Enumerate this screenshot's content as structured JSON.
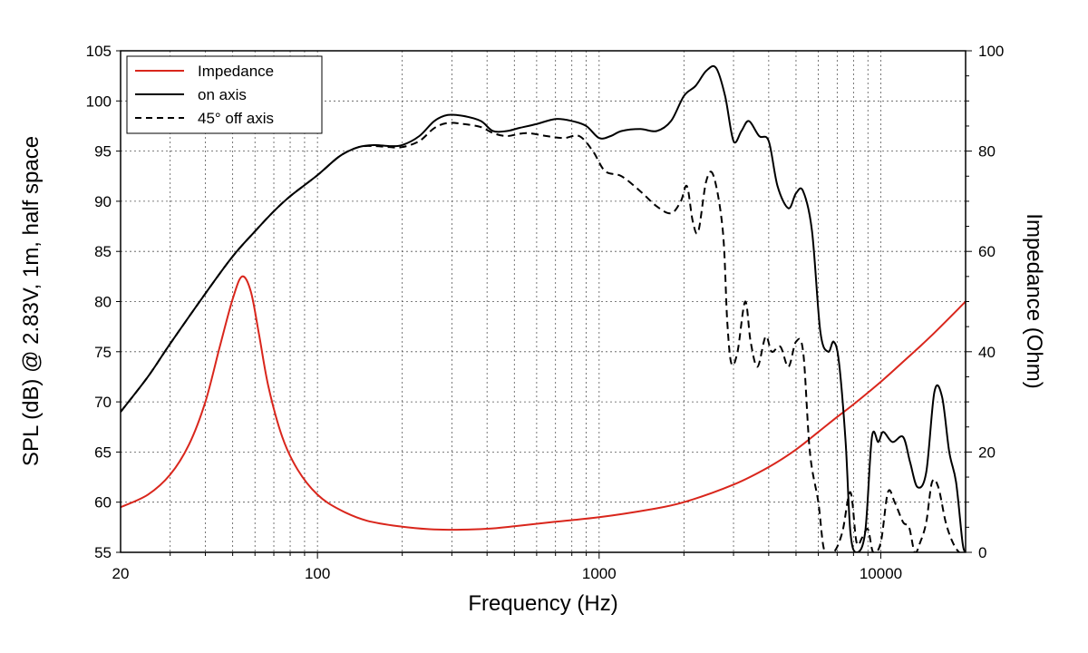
{
  "chart_data": {
    "type": "line",
    "x_scale": "log",
    "xlabel": "Frequency (Hz)",
    "ylabel_left": "SPL (dB) @ 2.83V, 1m, half space",
    "ylabel_right": "Impedance (Ohm)",
    "xlim": [
      20,
      20000
    ],
    "ylim_left": [
      55,
      105
    ],
    "ylim_right": [
      0,
      100
    ],
    "x_ticks": [
      {
        "value": 20,
        "label": "20"
      },
      {
        "value": 100,
        "label": "100"
      },
      {
        "value": 1000,
        "label": "1000"
      },
      {
        "value": 10000,
        "label": "10000"
      }
    ],
    "y_ticks_left": [
      {
        "value": 55,
        "label": "55"
      },
      {
        "value": 60,
        "label": "60"
      },
      {
        "value": 65,
        "label": "65"
      },
      {
        "value": 70,
        "label": "70"
      },
      {
        "value": 75,
        "label": "75"
      },
      {
        "value": 80,
        "label": "80"
      },
      {
        "value": 85,
        "label": "85"
      },
      {
        "value": 90,
        "label": "90"
      },
      {
        "value": 95,
        "label": "95"
      },
      {
        "value": 100,
        "label": "100"
      },
      {
        "value": 105,
        "label": "105"
      }
    ],
    "y_ticks_right": [
      {
        "value": 0,
        "label": "0"
      },
      {
        "value": 20,
        "label": "20"
      },
      {
        "value": 40,
        "label": "40"
      },
      {
        "value": 60,
        "label": "60"
      },
      {
        "value": 80,
        "label": "80"
      },
      {
        "value": 100,
        "label": "100"
      }
    ],
    "grid": true,
    "legend_position": "top-left",
    "series": [
      {
        "name": "Impedance",
        "axis": "right",
        "color": "#d9261c",
        "dash": "solid",
        "points": [
          [
            20,
            9.0
          ],
          [
            25,
            11.5
          ],
          [
            30,
            15.5
          ],
          [
            35,
            21.5
          ],
          [
            40,
            30.0
          ],
          [
            45,
            41.0
          ],
          [
            50,
            50.5
          ],
          [
            54,
            55.0
          ],
          [
            58,
            52.0
          ],
          [
            62,
            43.5
          ],
          [
            67,
            33.0
          ],
          [
            75,
            23.0
          ],
          [
            85,
            16.5
          ],
          [
            100,
            11.5
          ],
          [
            120,
            8.5
          ],
          [
            150,
            6.3
          ],
          [
            200,
            5.1
          ],
          [
            250,
            4.6
          ],
          [
            300,
            4.5
          ],
          [
            400,
            4.7
          ],
          [
            500,
            5.2
          ],
          [
            700,
            6.1
          ],
          [
            1000,
            7.0
          ],
          [
            1500,
            8.5
          ],
          [
            2000,
            10.0
          ],
          [
            3000,
            13.5
          ],
          [
            4000,
            17.0
          ],
          [
            5000,
            20.5
          ],
          [
            6000,
            24.0
          ],
          [
            7000,
            27.0
          ],
          [
            8000,
            29.5
          ],
          [
            10000,
            34.0
          ],
          [
            12000,
            38.0
          ],
          [
            15000,
            43.0
          ],
          [
            20000,
            50.0
          ]
        ]
      },
      {
        "name": "on axis",
        "axis": "left",
        "color": "#000000",
        "dash": "solid",
        "points": [
          [
            20,
            69.0
          ],
          [
            25,
            72.5
          ],
          [
            30,
            75.8
          ],
          [
            40,
            80.8
          ],
          [
            50,
            84.5
          ],
          [
            60,
            87.0
          ],
          [
            70,
            89.0
          ],
          [
            80,
            90.5
          ],
          [
            100,
            92.6
          ],
          [
            120,
            94.5
          ],
          [
            140,
            95.4
          ],
          [
            160,
            95.6
          ],
          [
            180,
            95.5
          ],
          [
            200,
            95.6
          ],
          [
            230,
            96.5
          ],
          [
            260,
            98.0
          ],
          [
            290,
            98.6
          ],
          [
            330,
            98.5
          ],
          [
            380,
            98.0
          ],
          [
            420,
            97.0
          ],
          [
            470,
            97.0
          ],
          [
            520,
            97.3
          ],
          [
            600,
            97.7
          ],
          [
            700,
            98.2
          ],
          [
            800,
            98.0
          ],
          [
            900,
            97.5
          ],
          [
            1000,
            96.3
          ],
          [
            1100,
            96.5
          ],
          [
            1200,
            97.0
          ],
          [
            1400,
            97.2
          ],
          [
            1600,
            97.0
          ],
          [
            1800,
            98.0
          ],
          [
            2000,
            100.5
          ],
          [
            2200,
            101.5
          ],
          [
            2400,
            103.0
          ],
          [
            2600,
            103.3
          ],
          [
            2800,
            100.5
          ],
          [
            3000,
            96.0
          ],
          [
            3200,
            97.0
          ],
          [
            3400,
            98.0
          ],
          [
            3700,
            96.5
          ],
          [
            4000,
            96.0
          ],
          [
            4300,
            91.5
          ],
          [
            4700,
            89.3
          ],
          [
            5000,
            90.8
          ],
          [
            5300,
            91.0
          ],
          [
            5700,
            87.0
          ],
          [
            6100,
            77.0
          ],
          [
            6500,
            75.0
          ],
          [
            6800,
            76.0
          ],
          [
            7100,
            74.0
          ],
          [
            7500,
            66.0
          ],
          [
            7800,
            57.0
          ],
          [
            8200,
            55.0
          ],
          [
            8800,
            57.0
          ],
          [
            9300,
            66.5
          ],
          [
            9800,
            66.0
          ],
          [
            10200,
            67.0
          ],
          [
            11000,
            66.0
          ],
          [
            12000,
            66.5
          ],
          [
            12700,
            64.0
          ],
          [
            13500,
            61.5
          ],
          [
            14500,
            63.0
          ],
          [
            15500,
            71.0
          ],
          [
            16500,
            70.5
          ],
          [
            17500,
            65.0
          ],
          [
            18500,
            62.0
          ],
          [
            19500,
            56.0
          ],
          [
            20000,
            55.0
          ]
        ]
      },
      {
        "name": "45° off axis",
        "axis": "left",
        "color": "#000000",
        "dash": "dashed",
        "points": [
          [
            20,
            69.0
          ],
          [
            25,
            72.5
          ],
          [
            30,
            75.8
          ],
          [
            40,
            80.8
          ],
          [
            50,
            84.5
          ],
          [
            60,
            87.0
          ],
          [
            70,
            89.0
          ],
          [
            80,
            90.5
          ],
          [
            100,
            92.6
          ],
          [
            120,
            94.5
          ],
          [
            140,
            95.4
          ],
          [
            160,
            95.5
          ],
          [
            180,
            95.4
          ],
          [
            200,
            95.4
          ],
          [
            230,
            96.0
          ],
          [
            260,
            97.3
          ],
          [
            290,
            97.8
          ],
          [
            330,
            97.7
          ],
          [
            380,
            97.4
          ],
          [
            420,
            96.8
          ],
          [
            470,
            96.5
          ],
          [
            550,
            96.8
          ],
          [
            650,
            96.5
          ],
          [
            750,
            96.3
          ],
          [
            850,
            96.5
          ],
          [
            950,
            95.0
          ],
          [
            1050,
            93.0
          ],
          [
            1200,
            92.5
          ],
          [
            1400,
            91.0
          ],
          [
            1600,
            89.5
          ],
          [
            1800,
            88.8
          ],
          [
            1950,
            90.0
          ],
          [
            2050,
            91.5
          ],
          [
            2150,
            88.0
          ],
          [
            2250,
            87.0
          ],
          [
            2400,
            92.0
          ],
          [
            2550,
            92.5
          ],
          [
            2750,
            87.0
          ],
          [
            2850,
            78.0
          ],
          [
            2950,
            73.8
          ],
          [
            3100,
            75.0
          ],
          [
            3300,
            80.0
          ],
          [
            3450,
            76.0
          ],
          [
            3650,
            73.5
          ],
          [
            3900,
            76.5
          ],
          [
            4100,
            75.0
          ],
          [
            4400,
            75.5
          ],
          [
            4700,
            73.5
          ],
          [
            5000,
            76.0
          ],
          [
            5300,
            75.0
          ],
          [
            5600,
            65.0
          ],
          [
            6000,
            60.0
          ],
          [
            6300,
            55.2
          ],
          [
            6800,
            55.0
          ],
          [
            7300,
            57.0
          ],
          [
            7800,
            61.0
          ],
          [
            8200,
            56.0
          ],
          [
            8600,
            56.5
          ],
          [
            9000,
            57.3
          ],
          [
            9400,
            55.0
          ],
          [
            10000,
            56.0
          ],
          [
            10600,
            61.0
          ],
          [
            11200,
            60.0
          ],
          [
            12000,
            58.0
          ],
          [
            12600,
            57.5
          ],
          [
            13200,
            55.0
          ],
          [
            13800,
            56.0
          ],
          [
            14500,
            58.0
          ],
          [
            15200,
            62.0
          ],
          [
            16000,
            61.5
          ],
          [
            17000,
            58.0
          ],
          [
            18000,
            56.0
          ],
          [
            19000,
            55.0
          ],
          [
            20000,
            55.0
          ]
        ]
      }
    ]
  }
}
